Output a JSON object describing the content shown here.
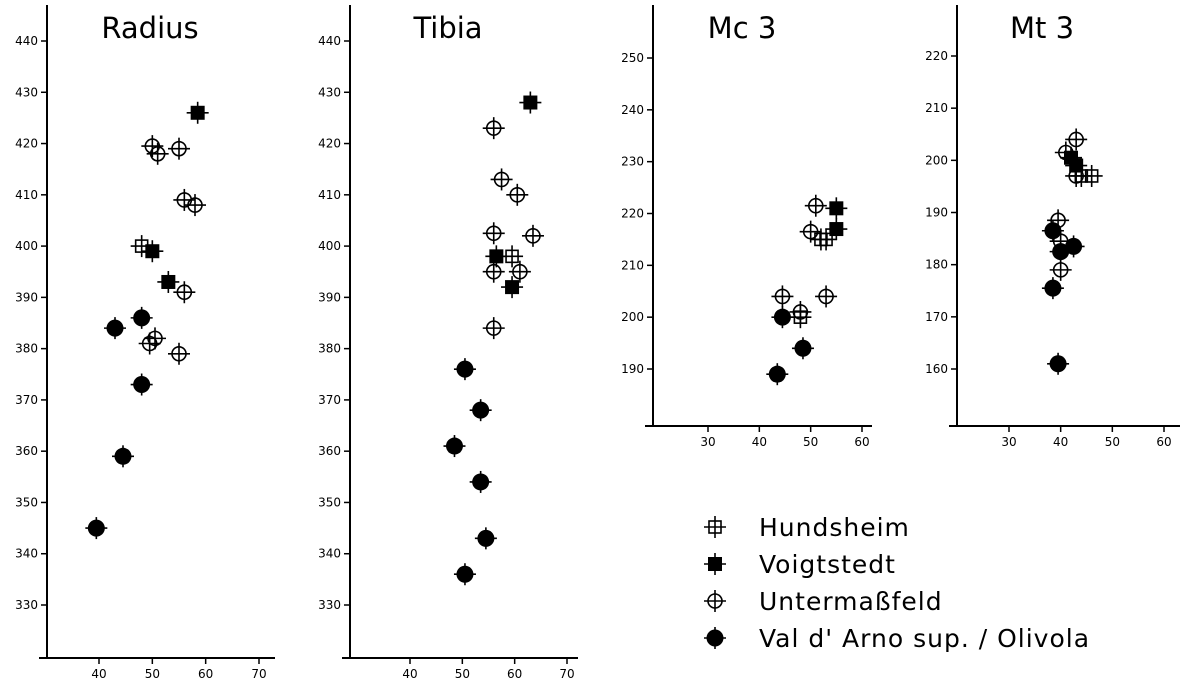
{
  "chart_data": [
    {
      "type": "scatter",
      "title": "Radius",
      "xlim": [
        30,
        75
      ],
      "ylim": [
        320,
        445
      ],
      "xticks": [
        40,
        50,
        60,
        70
      ],
      "yticks": [
        330,
        340,
        350,
        360,
        370,
        380,
        390,
        400,
        410,
        420,
        430,
        440
      ],
      "series": [
        {
          "name": "Hundsheim",
          "marker": "open-square",
          "points": [
            {
              "x": 48,
              "y": 400
            }
          ]
        },
        {
          "name": "Voigtstedt",
          "marker": "filled-square",
          "points": [
            {
              "x": 58.5,
              "y": 426
            },
            {
              "x": 50,
              "y": 399
            },
            {
              "x": 53,
              "y": 393
            }
          ]
        },
        {
          "name": "Untermaßfeld",
          "marker": "open-circle",
          "points": [
            {
              "x": 50,
              "y": 419.5
            },
            {
              "x": 51,
              "y": 418
            },
            {
              "x": 55,
              "y": 419
            },
            {
              "x": 56,
              "y": 409
            },
            {
              "x": 58,
              "y": 408
            },
            {
              "x": 56,
              "y": 391
            },
            {
              "x": 50.5,
              "y": 382
            },
            {
              "x": 49.5,
              "y": 381
            },
            {
              "x": 55,
              "y": 379
            }
          ]
        },
        {
          "name": "Val d' Arno sup. / Olivola",
          "marker": "filled-circle",
          "points": [
            {
              "x": 48,
              "y": 386
            },
            {
              "x": 43,
              "y": 384
            },
            {
              "x": 48,
              "y": 373
            },
            {
              "x": 44.5,
              "y": 359
            },
            {
              "x": 39.5,
              "y": 345
            }
          ]
        }
      ]
    },
    {
      "type": "scatter",
      "title": "Tibia",
      "xlim": [
        25,
        73
      ],
      "ylim": [
        318,
        445
      ],
      "xticks": [
        40,
        50,
        60,
        70
      ],
      "yticks": [
        330,
        340,
        350,
        360,
        370,
        380,
        390,
        400,
        410,
        420,
        430,
        440
      ],
      "series": [
        {
          "name": "Hundsheim",
          "marker": "open-square",
          "points": [
            {
              "x": 59.5,
              "y": 398
            }
          ]
        },
        {
          "name": "Voigtstedt",
          "marker": "filled-square",
          "points": [
            {
              "x": 63,
              "y": 428
            },
            {
              "x": 56.5,
              "y": 398
            },
            {
              "x": 59.5,
              "y": 392
            }
          ]
        },
        {
          "name": "Untermaßfeld",
          "marker": "open-circle",
          "points": [
            {
              "x": 56,
              "y": 423
            },
            {
              "x": 57.5,
              "y": 413
            },
            {
              "x": 60.5,
              "y": 410
            },
            {
              "x": 56,
              "y": 402.5
            },
            {
              "x": 63.5,
              "y": 402
            },
            {
              "x": 56,
              "y": 395
            },
            {
              "x": 61,
              "y": 395
            },
            {
              "x": 56,
              "y": 384
            }
          ]
        },
        {
          "name": "Val d' Arno sup. / Olivola",
          "marker": "filled-circle",
          "points": [
            {
              "x": 50.5,
              "y": 376
            },
            {
              "x": 53.5,
              "y": 368
            },
            {
              "x": 48.5,
              "y": 361
            },
            {
              "x": 53.5,
              "y": 354
            },
            {
              "x": 54.5,
              "y": 343
            },
            {
              "x": 50.5,
              "y": 336
            }
          ]
        }
      ]
    },
    {
      "type": "scatter",
      "title": "Mc 3",
      "xlim": [
        20,
        63
      ],
      "ylim": [
        180,
        260
      ],
      "xticks": [
        30,
        40,
        50,
        60
      ],
      "yticks": [
        190,
        200,
        210,
        220,
        230,
        240,
        250
      ],
      "series": [
        {
          "name": "Hundsheim",
          "marker": "open-square",
          "points": [
            {
              "x": 52,
              "y": 215
            },
            {
              "x": 53,
              "y": 215
            },
            {
              "x": 48,
              "y": 200
            }
          ]
        },
        {
          "name": "Voigtstedt",
          "marker": "filled-square",
          "points": [
            {
              "x": 55,
              "y": 221
            },
            {
              "x": 55,
              "y": 217
            }
          ]
        },
        {
          "name": "Untermaßfeld",
          "marker": "open-circle",
          "points": [
            {
              "x": 51,
              "y": 221.5
            },
            {
              "x": 50,
              "y": 216.5
            },
            {
              "x": 44.5,
              "y": 204
            },
            {
              "x": 53,
              "y": 204
            },
            {
              "x": 48,
              "y": 201
            }
          ]
        },
        {
          "name": "Val d' Arno sup. / Olivola",
          "marker": "filled-circle",
          "points": [
            {
              "x": 44.5,
              "y": 200
            },
            {
              "x": 48.5,
              "y": 194
            },
            {
              "x": 43.5,
              "y": 189
            }
          ]
        }
      ]
    },
    {
      "type": "scatter",
      "title": "Mt 3",
      "xlim": [
        20,
        63
      ],
      "ylim": [
        150,
        230
      ],
      "xticks": [
        30,
        40,
        50,
        60
      ],
      "yticks": [
        160,
        170,
        180,
        190,
        200,
        210,
        220
      ],
      "series": [
        {
          "name": "Hundsheim",
          "marker": "open-square",
          "points": [
            {
              "x": 44,
              "y": 197
            },
            {
              "x": 46,
              "y": 197
            }
          ]
        },
        {
          "name": "Voigtstedt",
          "marker": "filled-square",
          "points": [
            {
              "x": 42,
              "y": 200.5
            },
            {
              "x": 43,
              "y": 199
            }
          ]
        },
        {
          "name": "Untermaßfeld",
          "marker": "open-circle",
          "points": [
            {
              "x": 43,
              "y": 204
            },
            {
              "x": 41,
              "y": 201.5
            },
            {
              "x": 43,
              "y": 197
            },
            {
              "x": 39.5,
              "y": 188.5
            },
            {
              "x": 40,
              "y": 184.5
            },
            {
              "x": 40,
              "y": 179
            }
          ]
        },
        {
          "name": "Val d' Arno sup. / Olivola",
          "marker": "filled-circle",
          "points": [
            {
              "x": 38.5,
              "y": 186.5
            },
            {
              "x": 42.5,
              "y": 183.5
            },
            {
              "x": 40,
              "y": 182.5
            },
            {
              "x": 38.5,
              "y": 175.5
            },
            {
              "x": 39.5,
              "y": 161
            }
          ]
        }
      ]
    }
  ],
  "legend": {
    "placement": "bottom-right",
    "entries": [
      {
        "label": "Hundsheim",
        "marker": "open-square"
      },
      {
        "label": "Voigtstedt",
        "marker": "filled-square"
      },
      {
        "label": "Untermaßfeld",
        "marker": "open-circle"
      },
      {
        "label": "Val d' Arno sup. / Olivola",
        "marker": "filled-circle"
      }
    ]
  }
}
